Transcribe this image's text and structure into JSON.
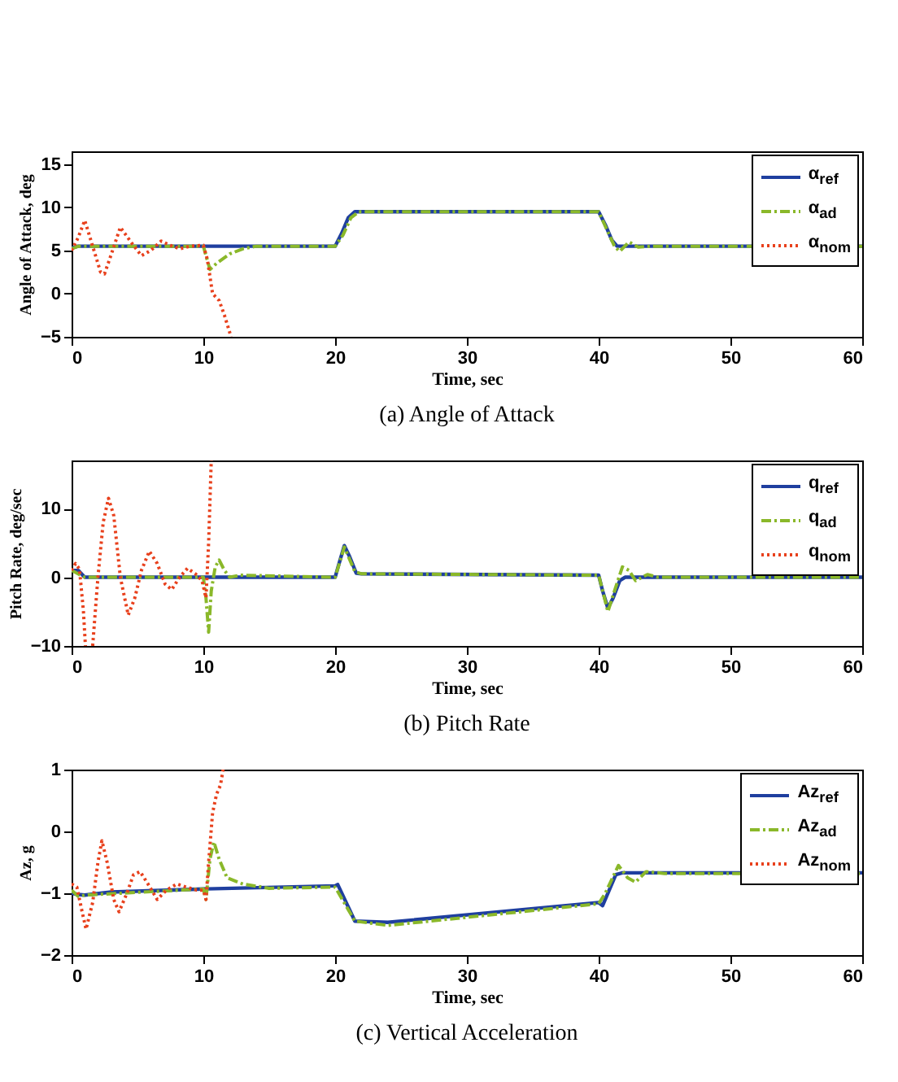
{
  "chart_data": [
    {
      "type": "line",
      "title": "(a) Angle of Attack",
      "xlabel": "Time, sec",
      "ylabel": "Angle of Attack, deg",
      "xlim": [
        0,
        60
      ],
      "xticks": [
        0,
        10,
        20,
        30,
        40,
        50,
        60
      ],
      "ylim": [
        -5,
        16.5
      ],
      "yticks": [
        -5,
        0,
        5,
        10,
        15
      ],
      "legend": "top right",
      "grid": false,
      "series": [
        {
          "name": "α$_{ref}$",
          "color": "#1f3f9f",
          "line_style": "solid",
          "x": [
            0,
            0.5,
            20,
            20.5,
            21,
            21.5,
            40,
            40.5,
            41,
            41.4,
            60
          ],
          "values": [
            5.3,
            5.5,
            5.5,
            7,
            8.8,
            9.5,
            9.5,
            8,
            6.2,
            5.5,
            5.5
          ]
        },
        {
          "name": "α$_{ad}$",
          "color": "#8ab82a",
          "line_style": "dashed",
          "x": [
            0,
            0.5,
            10,
            10.5,
            11,
            12,
            13,
            14,
            20,
            20.6,
            21.2,
            21.8,
            40,
            40.6,
            41.2,
            41.6,
            42.3,
            43,
            44,
            60
          ],
          "values": [
            5.2,
            5.5,
            5.5,
            2.8,
            3.5,
            4.6,
            5.2,
            5.5,
            5.5,
            6.8,
            8.8,
            9.5,
            9.5,
            7.5,
            5.5,
            4.9,
            6,
            5.4,
            5.5,
            5.5
          ]
        },
        {
          "name": "α$_{nom}$",
          "color": "#e8401c",
          "line_style": "dotted",
          "x": [
            0,
            0.5,
            1,
            1.5,
            2.2,
            2.5,
            3,
            3.7,
            4.5,
            5.3,
            6,
            6.8,
            7.5,
            8.2,
            9,
            10,
            10.3,
            10.7,
            11.2,
            11.6,
            12.1
          ],
          "values": [
            5,
            6.5,
            8.5,
            6,
            2.5,
            2.3,
            4.5,
            7.7,
            6,
            4.4,
            5,
            6.1,
            5.6,
            5.2,
            5.5,
            5.6,
            4,
            0,
            -0.8,
            -2.5,
            -5
          ]
        }
      ]
    },
    {
      "type": "line",
      "title": "(b) Pitch Rate",
      "xlabel": "Time, sec",
      "ylabel": "Pitch Rate, deg/sec",
      "xlim": [
        0,
        60
      ],
      "xticks": [
        0,
        10,
        20,
        30,
        40,
        50,
        60
      ],
      "ylim": [
        -10,
        17
      ],
      "yticks": [
        -10,
        0,
        10
      ],
      "legend": "top right",
      "grid": false,
      "series": [
        {
          "name": "q$_{ref}$",
          "color": "#1f3f9f",
          "line_style": "solid",
          "x": [
            0,
            0.5,
            1,
            20,
            20.3,
            20.7,
            21.1,
            21.6,
            22,
            40,
            40.3,
            40.7,
            41.1,
            41.6,
            42,
            60
          ],
          "values": [
            1,
            1,
            0,
            0,
            2,
            4.6,
            3,
            0.6,
            0.5,
            0.3,
            -2,
            -4.5,
            -3,
            -0.5,
            0,
            0
          ]
        },
        {
          "name": "q$_{ad}$",
          "color": "#8ab82a",
          "line_style": "dashed",
          "x": [
            0,
            1,
            10,
            10.2,
            10.4,
            10.6,
            10.9,
            11.2,
            11.6,
            12,
            12.8,
            20,
            20.7,
            21.5,
            22,
            40,
            40.7,
            41.2,
            41.8,
            42.3,
            42.8,
            43.7,
            44.5,
            60
          ],
          "values": [
            1,
            0,
            0,
            -3,
            -8,
            -2,
            1.5,
            2.5,
            1,
            0,
            0.3,
            0,
            4.4,
            0.8,
            0.5,
            0.3,
            -5,
            -2,
            1.5,
            1,
            -0.5,
            0.4,
            0,
            0
          ]
        },
        {
          "name": "q$_{nom}$",
          "color": "#e8401c",
          "line_style": "dotted",
          "x": [
            0,
            0.3,
            0.6,
            0.9,
            1.05,
            1.3,
            1.6,
            2,
            2.4,
            2.8,
            3.2,
            3.7,
            4.3,
            4.8,
            5.3,
            5.9,
            6.5,
            7.1,
            7.6,
            8.2,
            8.8,
            9.4,
            9.9,
            10.2,
            10.4,
            10.6
          ],
          "values": [
            1,
            2,
            1.2,
            -5,
            -10,
            null,
            -10,
            0,
            8,
            11.5,
            9,
            0,
            -5.5,
            -3,
            1,
            3.8,
            2,
            -1,
            -1.8,
            0,
            1.3,
            0.5,
            -0.5,
            -3,
            5,
            17
          ]
        }
      ]
    },
    {
      "type": "line",
      "title": "(c) Vertical Acceleration",
      "xlabel": "Time, sec",
      "ylabel": "Az, g",
      "xlim": [
        0,
        60
      ],
      "xticks": [
        0,
        10,
        20,
        30,
        40,
        50,
        60
      ],
      "ylim": [
        -2,
        1
      ],
      "yticks": [
        -2,
        -1,
        0,
        1
      ],
      "legend": "top right",
      "grid": false,
      "series": [
        {
          "name": "Az$_{ref}$",
          "color": "#1f3f9f",
          "line_style": "solid",
          "x": [
            0,
            0.5,
            1,
            3,
            10,
            20,
            20.2,
            21.5,
            24,
            40,
            40.3,
            41.3,
            41.8,
            60
          ],
          "values": [
            -1,
            -1.02,
            -1.03,
            -0.98,
            -0.93,
            -0.88,
            -0.86,
            -1.45,
            -1.47,
            -1.15,
            -1.2,
            -0.7,
            -0.67,
            -0.67
          ]
        },
        {
          "name": "Az$_{ad}$",
          "color": "#8ab82a",
          "line_style": "dashed",
          "x": [
            0,
            0.5,
            1,
            10,
            10.2,
            10.5,
            10.8,
            11.2,
            11.8,
            13,
            15,
            20,
            21.5,
            24,
            40,
            40.5,
            41.5,
            42.2,
            42.8,
            43.6,
            45,
            60
          ],
          "values": [
            -0.95,
            -1.05,
            -1.03,
            -0.93,
            -1.1,
            -0.45,
            -0.17,
            -0.45,
            -0.75,
            -0.85,
            -0.92,
            -0.9,
            -1.45,
            -1.52,
            -1.17,
            -1,
            -0.55,
            -0.75,
            -0.82,
            -0.65,
            -0.68,
            -0.68
          ]
        },
        {
          "name": "Az$_{nom}$",
          "color": "#e8401c",
          "line_style": "dotted",
          "x": [
            0,
            0.4,
            0.8,
            1.1,
            1.6,
            2,
            2.3,
            2.7,
            3.2,
            3.6,
            4.2,
            4.7,
            5.2,
            5.8,
            6.5,
            7.2,
            8,
            8.7,
            9.5,
            10,
            10.2,
            10.4,
            10.7,
            11,
            11.3,
            11.5
          ],
          "values": [
            -0.85,
            -0.9,
            -1.3,
            -1.58,
            -1.15,
            -0.5,
            -0.15,
            -0.5,
            -1.1,
            -1.3,
            -1,
            -0.7,
            -0.65,
            -0.85,
            -1.1,
            -0.95,
            -0.85,
            -0.9,
            -0.95,
            -0.95,
            -1.1,
            -0.5,
            0.3,
            0.6,
            0.75,
            1
          ]
        }
      ]
    }
  ]
}
